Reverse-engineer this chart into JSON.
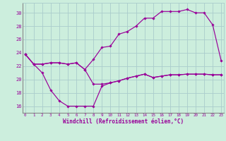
{
  "bg_color": "#cceedd",
  "grid_color": "#aacccc",
  "line_color": "#990099",
  "xlabel": "Windchill (Refroidissement éolien,°C)",
  "xticks": [
    0,
    1,
    2,
    3,
    4,
    5,
    6,
    7,
    8,
    9,
    10,
    11,
    12,
    13,
    14,
    15,
    16,
    17,
    18,
    19,
    20,
    21,
    22,
    23
  ],
  "yticks": [
    16,
    18,
    20,
    22,
    24,
    26,
    28,
    30
  ],
  "xlim": [
    -0.3,
    23.3
  ],
  "ylim": [
    15.0,
    31.5
  ],
  "line1_y": [
    23.8,
    22.3,
    22.3,
    22.5,
    22.5,
    22.3,
    22.5,
    21.5,
    19.3,
    19.3,
    19.5,
    19.8,
    20.2,
    20.5,
    20.8,
    20.3,
    20.5,
    20.7,
    20.7,
    20.8,
    20.8,
    20.8,
    20.7,
    20.7
  ],
  "line2_y": [
    23.8,
    22.3,
    22.3,
    22.5,
    22.5,
    22.3,
    22.5,
    21.5,
    23.0,
    24.8,
    25.0,
    26.8,
    27.2,
    28.0,
    29.2,
    29.2,
    30.2,
    30.2,
    30.2,
    30.5,
    30.0,
    30.0,
    28.2,
    22.8
  ],
  "line3_y": [
    23.8,
    22.3,
    21.0,
    18.4,
    16.8,
    16.0,
    16.0,
    16.0,
    16.0,
    19.0,
    19.5,
    19.8,
    20.2,
    20.5,
    20.8,
    20.3,
    20.5,
    20.7,
    20.7,
    20.8,
    20.8,
    20.8,
    20.7,
    20.7
  ],
  "figsize": [
    3.2,
    2.0
  ],
  "dpi": 100
}
